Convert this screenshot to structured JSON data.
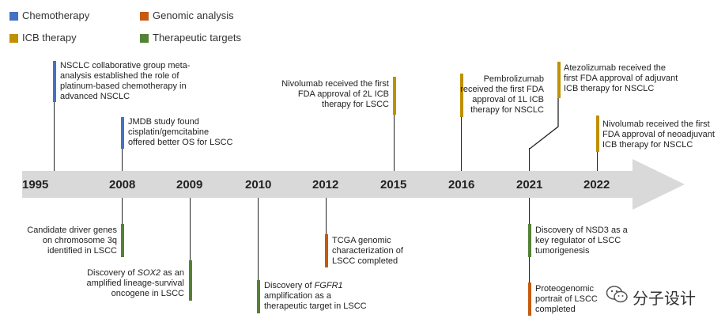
{
  "legend": {
    "chemotherapy": {
      "label": "Chemotherapy",
      "color": "#4472C4"
    },
    "genomic": {
      "label": "Genomic analysis",
      "color": "#C55A11"
    },
    "icb": {
      "label": "ICB therapy",
      "color": "#BF9000"
    },
    "targets": {
      "label": "Therapeutic targets",
      "color": "#548235"
    }
  },
  "years": [
    "1995",
    "2008",
    "2009",
    "2010",
    "2012",
    "2015",
    "2016",
    "2021",
    "2022"
  ],
  "events_top": {
    "e1995": {
      "lines": [
        "NSCLC collaborative group meta-",
        "analysis established the role of",
        "platinum-based chemotherapy in",
        "advanced NSCLC"
      ]
    },
    "e2008": {
      "lines": [
        "JMDB study found",
        "cisplatin/gemcitabine",
        "offered better OS for LSCC"
      ]
    },
    "e2015": {
      "lines": [
        "Nivolumab received the first",
        "FDA approval of 2L ICB",
        "therapy for LSCC"
      ]
    },
    "e2016": {
      "lines": [
        "Pembrolizumab",
        "received the first FDA",
        "approval of 1L ICB",
        "therapy for NSCLC"
      ]
    },
    "e2021": {
      "lines": [
        "Atezolizumab received the",
        "first FDA approval of adjuvant",
        "ICB therapy for NSCLC"
      ]
    },
    "e2022": {
      "lines": [
        "Nivolumab received the first",
        "FDA approval of neoadjuvant",
        "ICB therapy for NSCLC"
      ]
    }
  },
  "events_bottom": {
    "e2008": {
      "lines": [
        "Candidate driver genes",
        "on chromosome 3q",
        "identified in LSCC"
      ]
    },
    "e2009": {
      "l1_pre": "Discovery of ",
      "l1_gene": "SOX2",
      "l1_post": " as an",
      "l2": "amplified lineage-survival",
      "l3": "oncogene in LSCC"
    },
    "e2010": {
      "l1_pre": "Discovery of ",
      "l1_gene": "FGFR1",
      "l2": "amplification as a",
      "l3": "therapeutic target in LSCC"
    },
    "e2012": {
      "lines": [
        "TCGA genomic",
        "characterization of",
        "LSCC completed"
      ]
    },
    "e2021a": {
      "lines": [
        "Discovery of NSD3 as a",
        "key regulator of LSCC",
        "tumorigenesis"
      ]
    },
    "e2021b": {
      "lines": [
        "Proteogenomic",
        "portrait of LSCC",
        "completed"
      ]
    }
  },
  "watermark": "分子设计"
}
